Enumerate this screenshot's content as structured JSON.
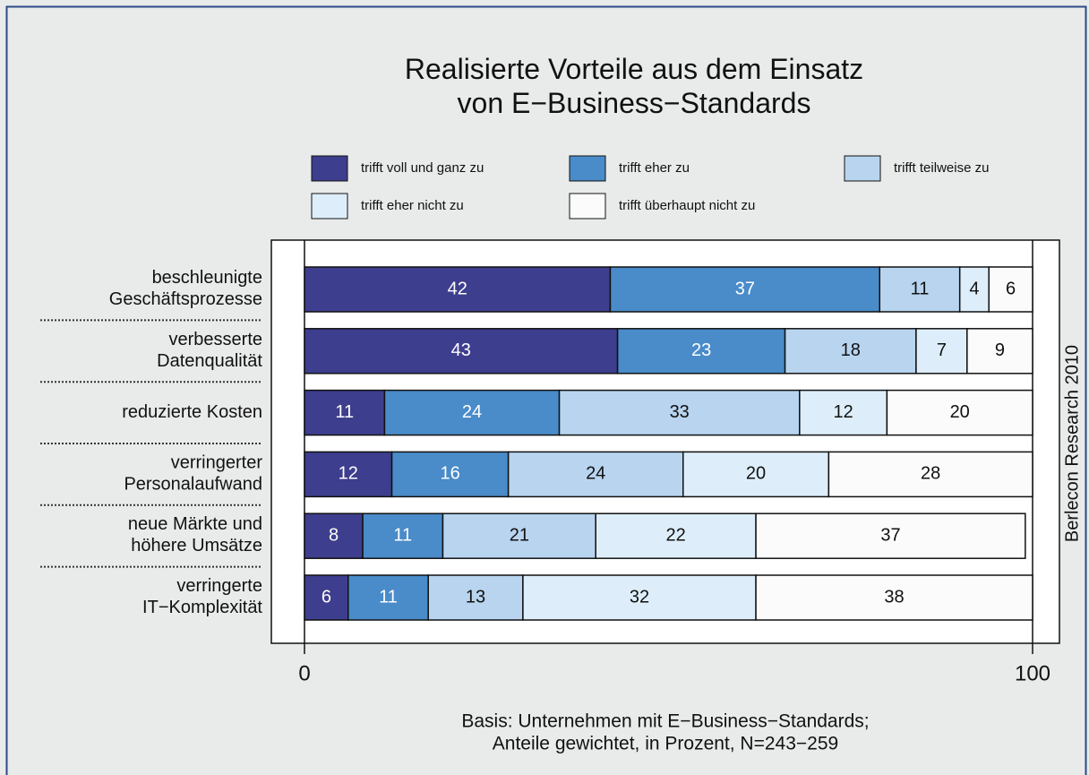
{
  "chart_data": {
    "type": "stacked-barh",
    "title": "Realisierte Vorteile aus dem Einsatz\nvon E−Business−Standards",
    "categories": [
      "beschleunigte\nGeschäftsprozesse",
      "verbesserte\nDatenqualität",
      "reduzierte Kosten",
      "verringerter\nPersonalaufwand",
      "neue Märkte und\nhöhere Umsätze",
      "verringerte\nIT−Komplexität"
    ],
    "series": [
      {
        "name": "trifft voll und ganz zu",
        "color": "#3e3e8e",
        "values": [
          42,
          43,
          11,
          12,
          8,
          6
        ]
      },
      {
        "name": "trifft eher zu",
        "color": "#4a8bc9",
        "values": [
          37,
          23,
          24,
          16,
          11,
          11
        ]
      },
      {
        "name": "trifft teilweise zu",
        "color": "#b8d4ef",
        "values": [
          11,
          18,
          33,
          24,
          21,
          13
        ]
      },
      {
        "name": "trifft eher nicht zu",
        "color": "#ddeefa",
        "values": [
          4,
          7,
          12,
          20,
          22,
          32
        ]
      },
      {
        "name": "trifft überhaupt nicht zu",
        "color": "#fbfbfb",
        "values": [
          6,
          9,
          20,
          28,
          37,
          38
        ]
      }
    ],
    "xlim": [
      0,
      100
    ],
    "xticks": [
      0,
      100
    ],
    "source": "Berlecon Research 2010",
    "footnote": "Basis: Unternehmen mit E−Business−Standards;\nAnteile gewichtet, in Prozent, N=243−259"
  }
}
